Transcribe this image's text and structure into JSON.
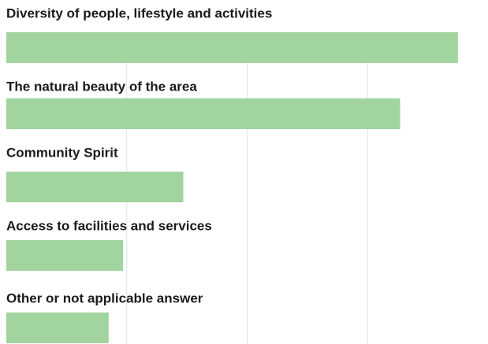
{
  "chart_data": {
    "type": "bar",
    "orientation": "horizontal",
    "categories": [
      "Diversity of people, lifestyle and activities",
      "The natural beauty of the area",
      "Community Spirit",
      "Access to facilities and services",
      "Other or not applicable answer"
    ],
    "values": [
      37.5,
      32.7,
      14.7,
      9.7,
      8.5
    ],
    "color": "#a1d49e",
    "grid_color": "#d3e8e5",
    "xlim": [
      0,
      40
    ],
    "xticks": [
      10,
      20,
      30
    ],
    "grid": true
  }
}
